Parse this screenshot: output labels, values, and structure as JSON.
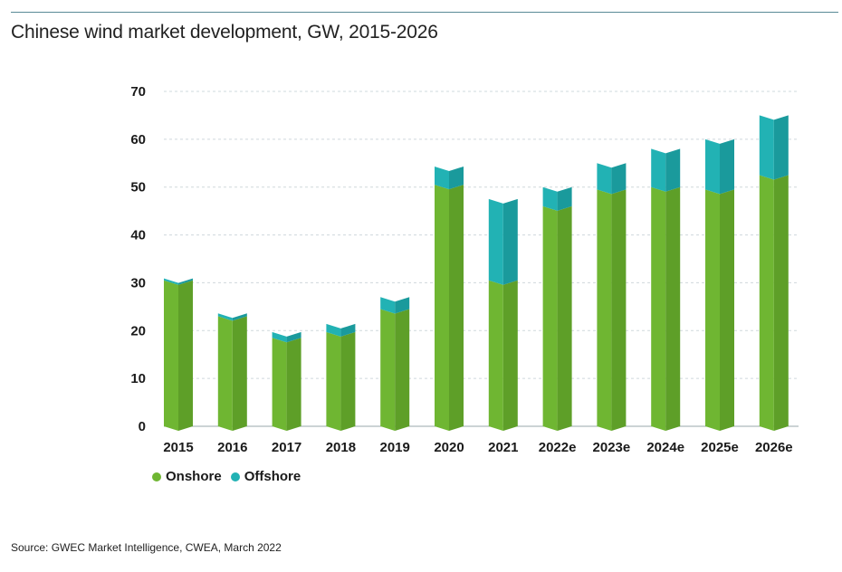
{
  "title": "Chinese wind market development, GW, 2015-2026",
  "source": "Source: GWEC Market Intelligence, CWEA, March 2022",
  "colors": {
    "onshore_front": "#6fb632",
    "onshore_side": "#5e9f28",
    "offshore_front": "#22b2b4",
    "offshore_side": "#1a9a9c",
    "grid": "#cfd8dc"
  },
  "chart_data": {
    "type": "bar",
    "stacked": true,
    "title": "Chinese wind market development, GW, 2015-2026",
    "xlabel": "",
    "ylabel": "",
    "ylim": [
      0,
      70
    ],
    "yticks": [
      0,
      10,
      20,
      30,
      40,
      50,
      60,
      70
    ],
    "grid": true,
    "legend": "bottom-left",
    "categories": [
      "2015",
      "2016",
      "2017",
      "2018",
      "2019",
      "2020",
      "2021",
      "2022e",
      "2023e",
      "2024e",
      "2025e",
      "2026e"
    ],
    "series": [
      {
        "name": "Onshore",
        "values": [
          30.5,
          23.0,
          18.5,
          19.7,
          24.5,
          50.5,
          30.5,
          46.0,
          49.5,
          50.0,
          49.5,
          52.5
        ]
      },
      {
        "name": "Offshore",
        "values": [
          0.4,
          0.6,
          1.2,
          1.7,
          2.5,
          3.8,
          17.0,
          4.0,
          5.5,
          8.0,
          10.5,
          12.5
        ]
      }
    ]
  }
}
